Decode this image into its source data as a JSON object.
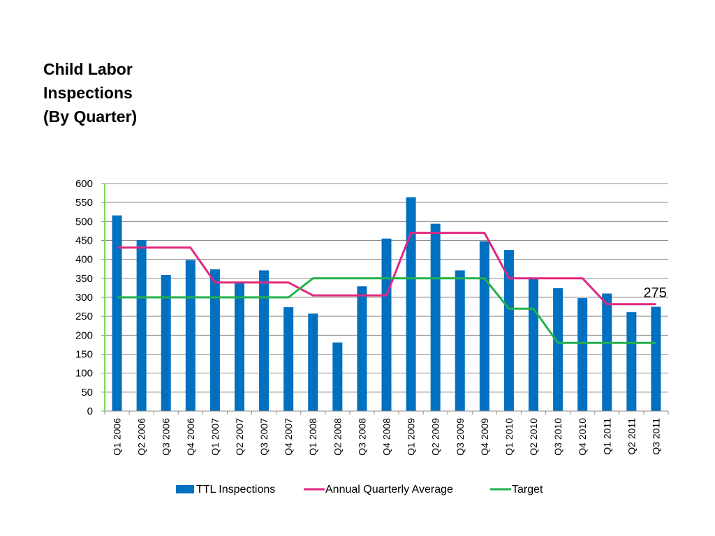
{
  "slide": {
    "title_lines": [
      "Child Labor",
      "Inspections",
      "(By Quarter)"
    ]
  },
  "chart_data": {
    "type": "bar",
    "categories": [
      "Q1 2006",
      "Q2 2006",
      "Q3 2006",
      "Q4 2006",
      "Q1 2007",
      "Q2 2007",
      "Q3 2007",
      "Q4 2007",
      "Q1 2008",
      "Q2 2008",
      "Q3 2008",
      "Q4 2008",
      "Q1 2009",
      "Q2 2009",
      "Q3 2009",
      "Q4 2009",
      "Q1 2010",
      "Q2 2010",
      "Q3 2010",
      "Q4 2010",
      "Q1 2011",
      "Q2 2011",
      "Q3 2011"
    ],
    "series": [
      {
        "name": "TTL Inspections",
        "type": "bar",
        "color": "#0070c0",
        "values": [
          516,
          451,
          359,
          398,
          374,
          338,
          371,
          274,
          257,
          181,
          329,
          455,
          564,
          494,
          371,
          448,
          425,
          352,
          324,
          298,
          310,
          261,
          275
        ]
      },
      {
        "name": "Annual Quarterly Average",
        "type": "line",
        "color": "#e0287f",
        "values": [
          431,
          431,
          431,
          431,
          339,
          339,
          339,
          339,
          305,
          305,
          305,
          305,
          470,
          470,
          470,
          470,
          350,
          350,
          350,
          350,
          282,
          282,
          282
        ]
      },
      {
        "name": "Target",
        "type": "line",
        "color": "#22b14c",
        "values": [
          300,
          300,
          300,
          300,
          300,
          300,
          300,
          300,
          350,
          350,
          350,
          350,
          350,
          350,
          350,
          350,
          270,
          270,
          180,
          180,
          180,
          180,
          180
        ]
      }
    ],
    "ylim": [
      0,
      600
    ],
    "yticks": [
      0,
      50,
      100,
      150,
      200,
      250,
      300,
      350,
      400,
      450,
      500,
      550,
      600
    ],
    "gridlines": true,
    "legend_position": "bottom",
    "annotations": [
      {
        "text": "275",
        "category": "Q3 2011"
      }
    ],
    "xlabel": "",
    "ylabel": ""
  }
}
